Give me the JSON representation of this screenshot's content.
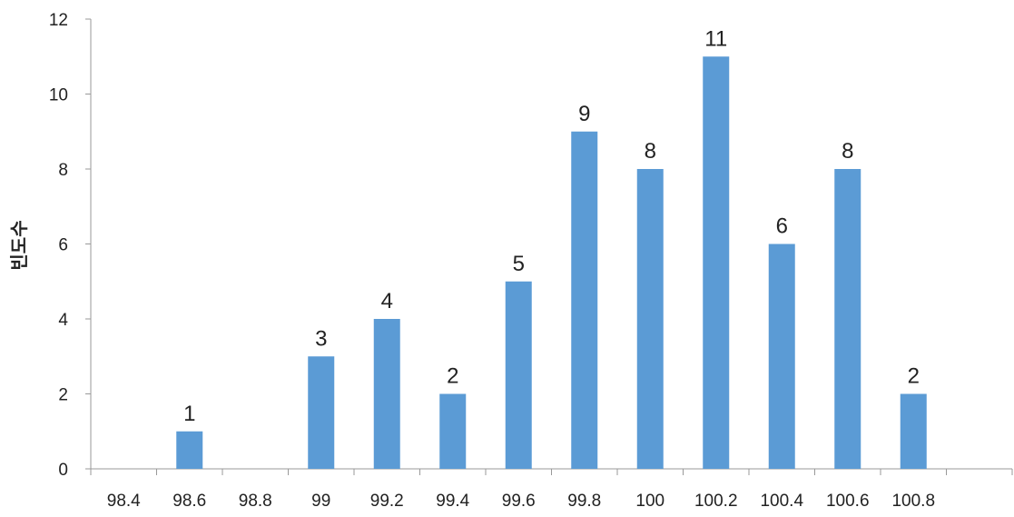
{
  "chart_data": {
    "type": "bar",
    "title": "",
    "xlabel": "",
    "ylabel": "빈도수",
    "categories": [
      "98.4",
      "98.6",
      "98.8",
      "99",
      "99.2",
      "99.4",
      "99.6",
      "99.8",
      "100",
      "100.2",
      "100.4",
      "100.6",
      "100.8"
    ],
    "values": [
      0,
      1,
      0,
      3,
      4,
      2,
      5,
      9,
      8,
      11,
      6,
      8,
      2
    ],
    "ylim": [
      0,
      12
    ],
    "yticks": [
      "0",
      "2",
      "4",
      "6",
      "8",
      "10",
      "12"
    ],
    "grid": false,
    "legend": "none",
    "bar_color": "#5B9BD5",
    "axis_color": "#999999"
  }
}
